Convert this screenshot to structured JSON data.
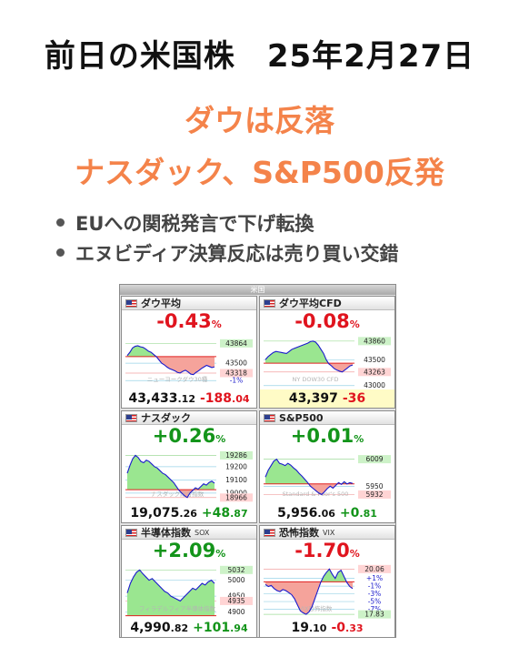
{
  "title": "前日の米国株　25年2月27日",
  "headline1": "ダウは反落",
  "headline2": "ナスダック、S&P500反発",
  "bullets": [
    "EUへの関税発言で下げ転換",
    "エヌビディア決算反応は売り買い交錯"
  ],
  "board": {
    "header": "米国",
    "panels": [
      {
        "name": "ダウ平均",
        "sub": "",
        "pct": "-0.43",
        "dir": "down",
        "value": "43,433",
        "value_dec": ".12",
        "change": "-188",
        "change_dec": ".04",
        "watermark": "ニューヨークダウ30種",
        "labels": [
          {
            "t": "43864",
            "s": "g",
            "v": 43864
          },
          {
            "t": "43500",
            "s": "p",
            "v": 43500
          },
          {
            "t": "43318",
            "s": "r",
            "v": 43318
          },
          {
            "t": "-1%",
            "s": "b",
            "v": 43180
          }
        ],
        "chart_data": {
          "type": "line",
          "prev_close": 43621,
          "ylim": [
            43050,
            44020
          ],
          "values": [
            43640,
            43700,
            43780,
            43810,
            43820,
            43800,
            43790,
            43760,
            43720,
            43700,
            43660,
            43620,
            43560,
            43500,
            43470,
            43430,
            43400,
            43380,
            43360,
            43330,
            43320,
            43350,
            43370,
            43340,
            43300,
            43290,
            43330,
            43360,
            43400,
            43430,
            43460,
            43440,
            43420,
            43433
          ]
        }
      },
      {
        "name": "ダウ平均CFD",
        "sub": "",
        "pct": "-0.08",
        "dir": "down",
        "value": "43,397",
        "value_dec": "",
        "change": "-36",
        "change_dec": "",
        "watermark": "NY DOW30 CFD",
        "labels": [
          {
            "t": "43860",
            "s": "g",
            "v": 43860
          },
          {
            "t": "43500",
            "s": "p",
            "v": 43500
          },
          {
            "t": "43263",
            "s": "r",
            "v": 43263
          },
          {
            "t": "43000",
            "s": "p",
            "v": 43000
          }
        ],
        "chart_data": {
          "type": "line",
          "prev_close": 43433,
          "ylim": [
            42960,
            43980
          ],
          "values": [
            43500,
            43560,
            43600,
            43640,
            43660,
            43650,
            43640,
            43630,
            43620,
            43660,
            43700,
            43720,
            43740,
            43760,
            43780,
            43800,
            43820,
            43850,
            43860,
            43840,
            43780,
            43700,
            43620,
            43500,
            43420,
            43380,
            43330,
            43300,
            43280,
            43263,
            43300,
            43340,
            43380,
            43397
          ]
        }
      },
      {
        "name": "ナスダック",
        "sub": "",
        "pct": "+0.26",
        "dir": "up",
        "value": "19,075",
        "value_dec": ".26",
        "change": "+48",
        "change_dec": ".87",
        "watermark": "ナスダック総合指数",
        "labels": [
          {
            "t": "19286",
            "s": "g",
            "v": 19286
          },
          {
            "t": "19200",
            "s": "p",
            "v": 19200
          },
          {
            "t": "19100",
            "s": "p",
            "v": 19100
          },
          {
            "t": "19000",
            "s": "p",
            "v": 19000
          },
          {
            "t": "18966",
            "s": "r",
            "v": 18966
          }
        ],
        "chart_data": {
          "type": "line",
          "prev_close": 19026,
          "ylim": [
            18930,
            19330
          ],
          "values": [
            19150,
            19210,
            19260,
            19286,
            19270,
            19240,
            19230,
            19250,
            19240,
            19220,
            19200,
            19190,
            19170,
            19150,
            19140,
            19120,
            19100,
            19080,
            19050,
            19020,
            19000,
            18980,
            18966,
            19000,
            19020,
            19040,
            19030,
            19050,
            19070,
            19060,
            19080,
            19090,
            19075
          ]
        }
      },
      {
        "name": "S&P500",
        "sub": "",
        "pct": "+0.01",
        "dir": "up",
        "value": "5,956",
        "value_dec": ".06",
        "change": "+0",
        "change_dec": ".81",
        "watermark": "Standard & Poor's 500",
        "labels": [
          {
            "t": "6009",
            "s": "g",
            "v": 6009
          },
          {
            "t": "5950",
            "s": "p",
            "v": 5950
          },
          {
            "t": "5932",
            "s": "r",
            "v": 5932
          }
        ],
        "chart_data": {
          "type": "line",
          "prev_close": 5955.25,
          "ylim": [
            5915,
            6030
          ],
          "values": [
            5970,
            5985,
            5995,
            6005,
            6009,
            6000,
            5998,
            5995,
            6000,
            5996,
            5990,
            5985,
            5978,
            5972,
            5965,
            5958,
            5950,
            5945,
            5940,
            5935,
            5932,
            5938,
            5945,
            5950,
            5946,
            5952,
            5958,
            5954,
            5960,
            5955,
            5958,
            5956
          ]
        }
      },
      {
        "name": "半導体指数",
        "sub": "SOX",
        "pct": "+2.09",
        "dir": "up",
        "value": "4,990",
        "value_dec": ".82",
        "change": "+101",
        "change_dec": ".94",
        "watermark": "フィラデルフィア半導体指数",
        "labels": [
          {
            "t": "5032",
            "s": "g",
            "v": 5032
          },
          {
            "t": "5000",
            "s": "p",
            "v": 5000
          },
          {
            "t": "4950",
            "s": "p",
            "v": 4950
          },
          {
            "t": "4935",
            "s": "r",
            "v": 4935
          },
          {
            "t": "4900",
            "s": "p",
            "v": 4900
          }
        ],
        "chart_data": {
          "type": "line",
          "prev_close": 4888.88,
          "ylim": [
            4885,
            5050
          ],
          "values": [
            4960,
            4990,
            5010,
            5025,
            5032,
            5020,
            5010,
            5000,
            5005,
            4995,
            4985,
            4975,
            4965,
            4960,
            4950,
            4945,
            4940,
            4935,
            4945,
            4955,
            4965,
            4975,
            4970,
            4980,
            4990,
            4985,
            4995,
            5000,
            4990
          ]
        }
      },
      {
        "name": "恐怖指数",
        "sub": "VIX",
        "pct": "-1.70",
        "dir": "down",
        "value": "19",
        "value_dec": ".10",
        "change": "-0",
        "change_dec": ".33",
        "watermark": "VIX恐怖指数",
        "labels": [
          {
            "t": "20.06",
            "s": "r",
            "v": 20.06
          },
          {
            "t": "+1%",
            "s": "b",
            "v": 19.6
          },
          {
            "t": "-1%",
            "s": "b",
            "v": 19.22
          },
          {
            "t": "-3%",
            "s": "b",
            "v": 18.84
          },
          {
            "t": "-5%",
            "s": "b",
            "v": 18.46
          },
          {
            "t": "-7%",
            "s": "b",
            "v": 18.08
          },
          {
            "t": "17.83",
            "s": "g",
            "v": 17.83
          }
        ],
        "chart_data": {
          "type": "line",
          "prev_close": 19.43,
          "ylim": [
            17.7,
            20.3
          ],
          "values": [
            19.3,
            19.2,
            19.25,
            19.1,
            19.0,
            18.95,
            19.05,
            19.0,
            18.9,
            18.8,
            18.6,
            18.3,
            18.0,
            17.9,
            17.83,
            17.95,
            18.2,
            18.6,
            19.0,
            19.4,
            19.7,
            19.9,
            20.06,
            19.8,
            19.6,
            19.9,
            20.0,
            19.7,
            19.4,
            19.2,
            19.1
          ]
        }
      }
    ]
  },
  "colors": {
    "up": "#13941a",
    "down": "#e0141e",
    "headline": "#f4834a",
    "line": "#1a1acc",
    "fill_up": "#9ae690",
    "fill_down": "#f5a39b"
  }
}
